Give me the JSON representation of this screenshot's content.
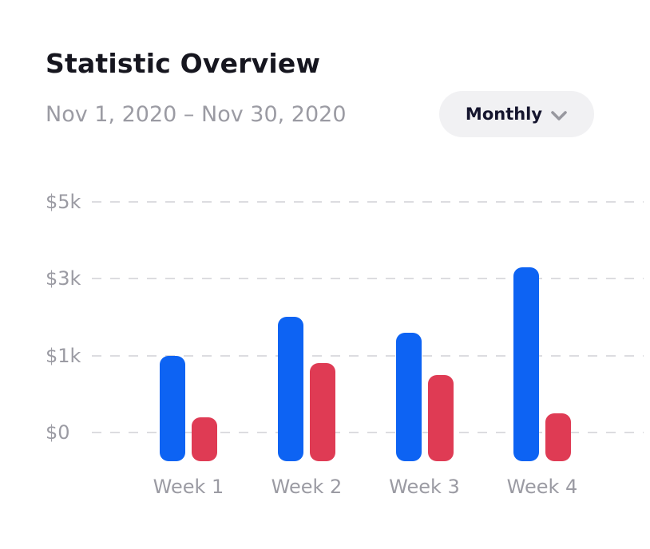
{
  "header": {
    "title": "Statistic Overview",
    "date_range": "Nov 1, 2020 – Nov 30, 2020"
  },
  "controls": {
    "period_selector": {
      "label": "Monthly",
      "icon": "chevron-down"
    }
  },
  "colors": {
    "bar_blue": "#0d63f3",
    "bar_red": "#df3b54",
    "grid": "#dcdce0",
    "muted_text": "#9b9ba3",
    "title_text": "#16161f",
    "pill_bg": "#f1f1f3"
  },
  "chart_data": {
    "type": "bar",
    "title": "Statistic Overview",
    "xlabel": "",
    "ylabel": "",
    "categories": [
      "Week 1",
      "Week 2",
      "Week 3",
      "Week 4"
    ],
    "series": [
      {
        "name": "blue",
        "color": "#0d63f3",
        "values": [
          1000,
          2000,
          1600,
          3300
        ]
      },
      {
        "name": "red",
        "color": "#df3b54",
        "values": [
          200,
          900,
          750,
          250
        ]
      }
    ],
    "y_ticks": [
      {
        "label": "$5k",
        "value": 5000
      },
      {
        "label": "$3k",
        "value": 3000
      },
      {
        "label": "$1k",
        "value": 1000
      },
      {
        "label": "$0",
        "value": 0
      }
    ],
    "ylim": [
      0,
      5000
    ],
    "grid": "horizontal-dashed",
    "legend": "none",
    "axis_note": "y ticks 0/1k/3k/5k are equally spaced (non-linear scale)"
  }
}
